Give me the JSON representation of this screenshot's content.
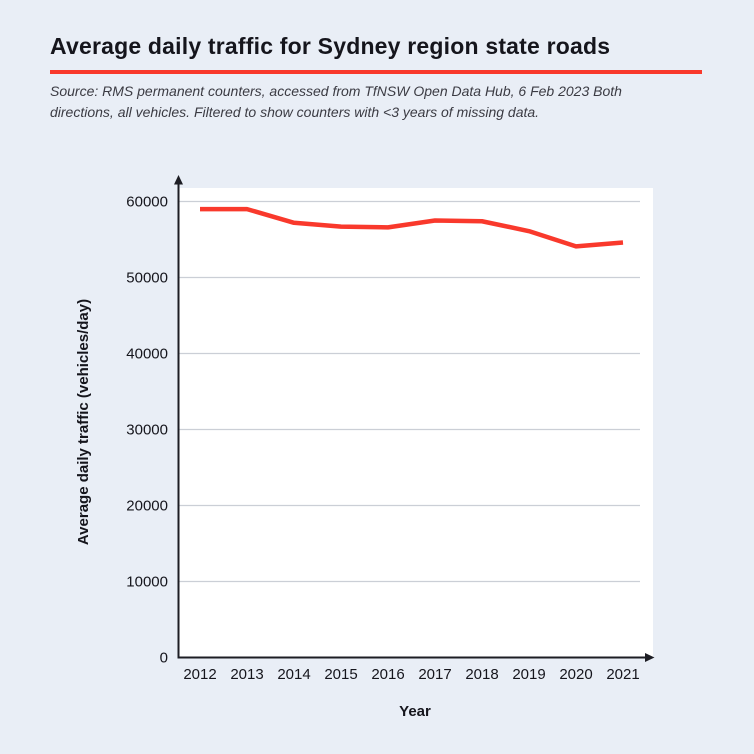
{
  "page": {
    "background_color": "#e9eef6"
  },
  "header": {
    "title": "Average daily traffic for Sydney region state roads",
    "source_line1": "Source: RMS permanent counters, accessed from TfNSW Open Data Hub, 6 Feb 2023 Both",
    "source_line2": "directions, all vehicles. Filtered to show counters with <3 years of missing data."
  },
  "chart_data": {
    "type": "line",
    "title": "Average daily traffic for Sydney region state roads",
    "xlabel": "Year",
    "ylabel": "Average daily traffic (vehicles/day)",
    "categories": [
      "2012",
      "2013",
      "2014",
      "2015",
      "2016",
      "2017",
      "2018",
      "2019",
      "2020",
      "2021"
    ],
    "series": [
      {
        "name": "Average daily traffic",
        "values": [
          59000,
          59000,
          57200,
          56700,
          56600,
          57500,
          57400,
          56100,
          54100,
          54600
        ]
      }
    ],
    "ylim": [
      0,
      60000
    ],
    "yticks": [
      0,
      10000,
      20000,
      30000,
      40000,
      50000,
      60000
    ],
    "grid": "horizontal",
    "legend": "none",
    "line_color": "#f9392c",
    "plot_background": "#ffffff",
    "gridline_color": "#cbcfd6",
    "axis_color": "#1d1d24"
  }
}
